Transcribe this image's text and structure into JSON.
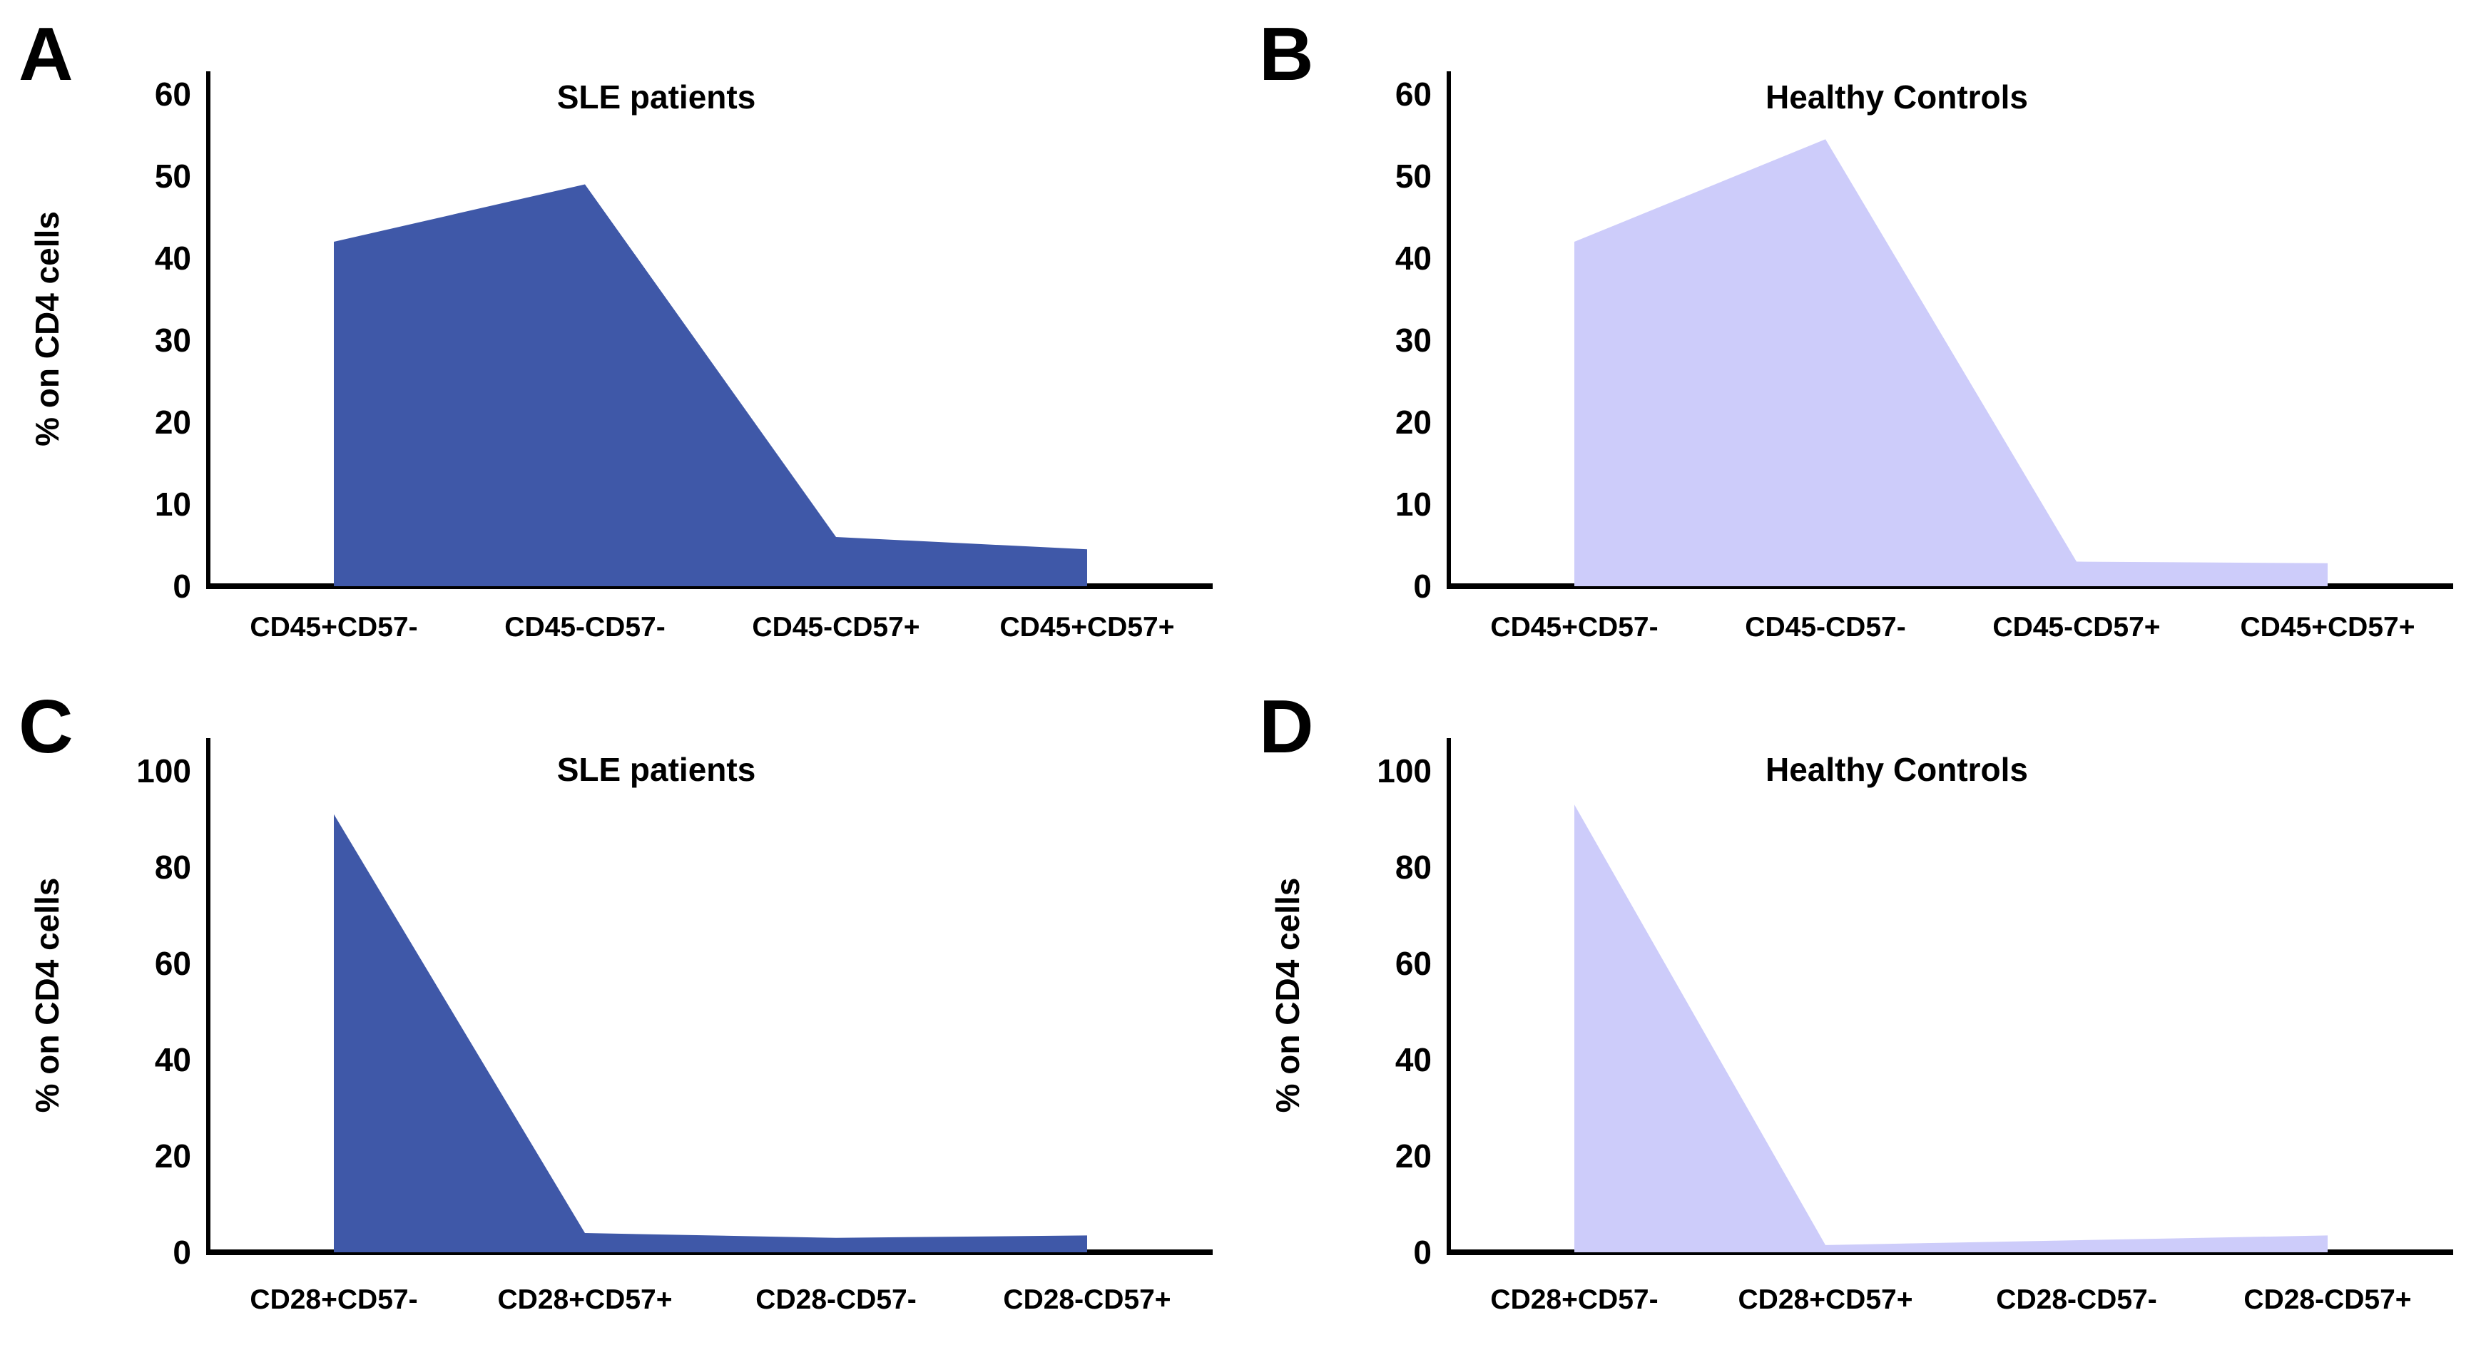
{
  "figure": {
    "background": "#ffffff",
    "axis_color": "#000000",
    "text_color": "#000000"
  },
  "chart_data": [
    {
      "type": "area",
      "panel_letter": "A",
      "title": "SLE patients",
      "ylabel": "% on CD4 cells",
      "xlabel": "",
      "categories": [
        "CD45+CD57-",
        "CD45-CD57-",
        "CD45-CD57+",
        "CD45+CD57+"
      ],
      "values": [
        42,
        49,
        6,
        4.5
      ],
      "ylim": [
        0,
        60
      ],
      "yticks": [
        0,
        10,
        20,
        30,
        40,
        50,
        60
      ],
      "fill": "#3F58A8",
      "grid": false,
      "legend": null
    },
    {
      "type": "area",
      "panel_letter": "B",
      "title": "Healthy Controls",
      "ylabel": "",
      "xlabel": "",
      "categories": [
        "CD45+CD57-",
        "CD45-CD57-",
        "CD45-CD57+",
        "CD45+CD57+"
      ],
      "values": [
        42,
        54.5,
        3,
        2.8
      ],
      "ylim": [
        0,
        60
      ],
      "yticks": [
        0,
        10,
        20,
        30,
        40,
        50,
        60
      ],
      "fill": "#CDCCFA",
      "grid": false,
      "legend": null
    },
    {
      "type": "area",
      "panel_letter": "C",
      "title": "SLE patients",
      "ylabel": "% on CD4 cells",
      "xlabel": "",
      "categories": [
        "CD28+CD57-",
        "CD28+CD57+",
        "CD28-CD57-",
        "CD28-CD57+"
      ],
      "values": [
        91,
        4,
        3,
        3.5
      ],
      "ylim": [
        0,
        100
      ],
      "yticks": [
        0,
        20,
        40,
        60,
        80,
        100
      ],
      "fill": "#3F58A8",
      "grid": false,
      "legend": null
    },
    {
      "type": "area",
      "panel_letter": "D",
      "title": "Healthy Controls",
      "ylabel": "% on CD4 cells",
      "xlabel": "",
      "categories": [
        "CD28+CD57-",
        "CD28+CD57+",
        "CD28-CD57-",
        "CD28-CD57+"
      ],
      "values": [
        93,
        1.5,
        2.5,
        3.5
      ],
      "ylim": [
        0,
        100
      ],
      "yticks": [
        0,
        20,
        40,
        60,
        80,
        100
      ],
      "fill": "#CDCCFA",
      "grid": false,
      "legend": null
    }
  ]
}
